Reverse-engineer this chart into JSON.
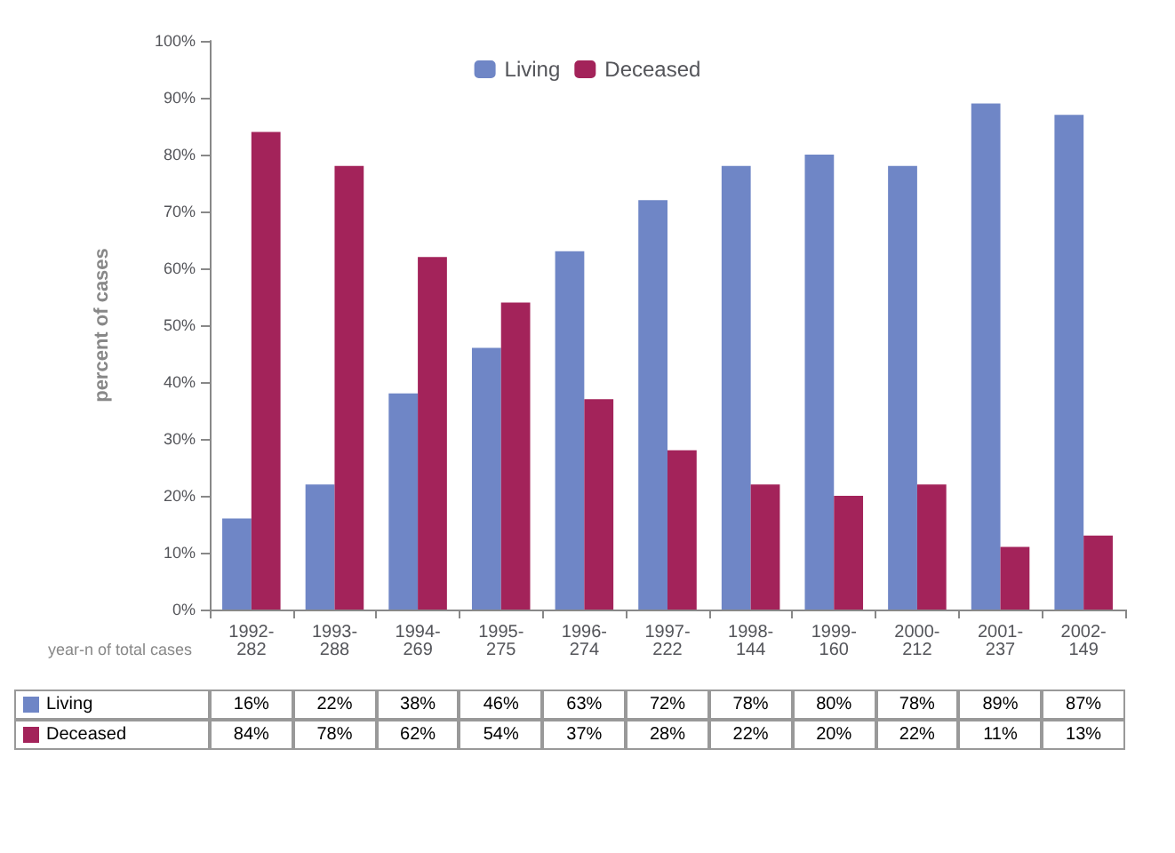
{
  "chart_data": {
    "type": "bar",
    "ylabel": "percent of cases",
    "xlabel": "year-n of total cases",
    "categories": [
      "1992-282",
      "1993-288",
      "1994-269",
      "1995-275",
      "1996-274",
      "1997-222",
      "1998-144",
      "1999-160",
      "2000-212",
      "2001-237",
      "2002-149"
    ],
    "series": [
      {
        "name": "Living",
        "color": "#6f86c6",
        "values": [
          16,
          22,
          38,
          46,
          63,
          72,
          78,
          80,
          78,
          89,
          87
        ],
        "value_labels": [
          "16%",
          "22%",
          "38%",
          "46%",
          "63%",
          "72%",
          "78%",
          "80%",
          "78%",
          "89%",
          "87%"
        ]
      },
      {
        "name": "Deceased",
        "color": "#a3235a",
        "values": [
          84,
          78,
          62,
          54,
          37,
          28,
          22,
          20,
          22,
          11,
          13
        ],
        "value_labels": [
          "84%",
          "78%",
          "62%",
          "54%",
          "37%",
          "28%",
          "22%",
          "20%",
          "22%",
          "11%",
          "13%"
        ]
      }
    ],
    "ylim": [
      0,
      100
    ],
    "yticks": [
      {
        "value": 0,
        "label": "0%"
      },
      {
        "value": 10,
        "label": "10%"
      },
      {
        "value": 20,
        "label": "20%"
      },
      {
        "value": 30,
        "label": "30%"
      },
      {
        "value": 40,
        "label": "40%"
      },
      {
        "value": 50,
        "label": "50%"
      },
      {
        "value": 60,
        "label": "60%"
      },
      {
        "value": 70,
        "label": "70%"
      },
      {
        "value": 80,
        "label": "80%"
      },
      {
        "value": 90,
        "label": "90%"
      },
      {
        "value": 100,
        "label": "100%"
      }
    ],
    "legend": "top",
    "grid": false
  }
}
